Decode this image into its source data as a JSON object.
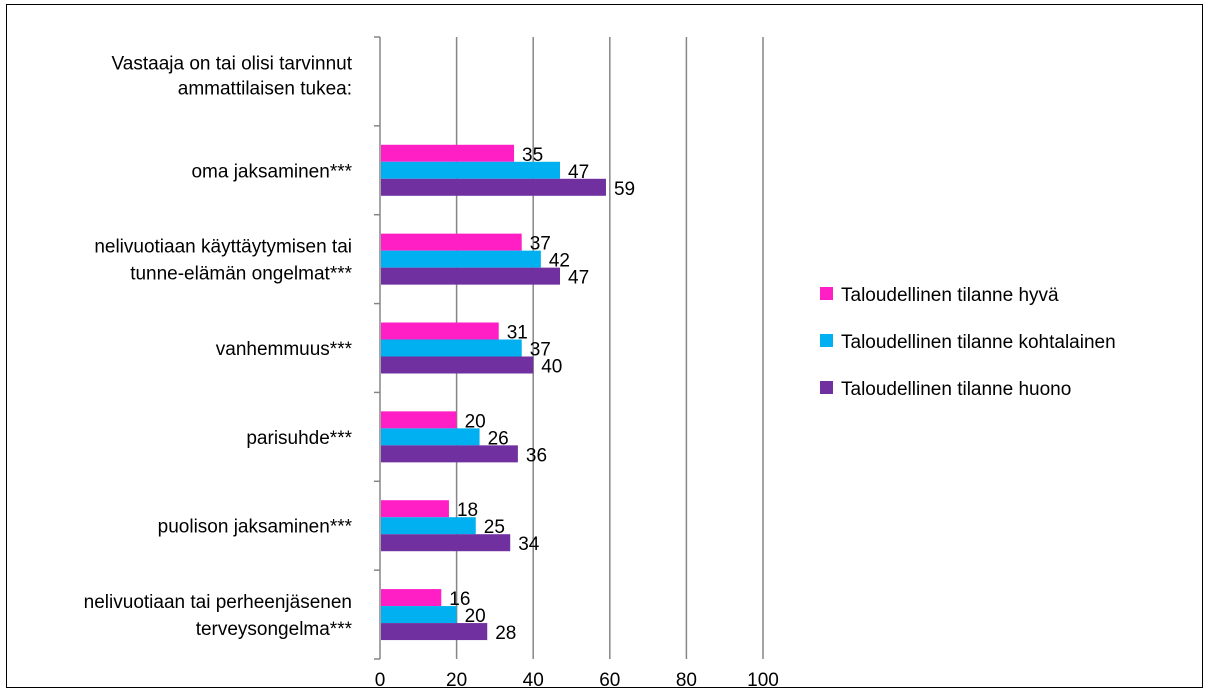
{
  "chart_data": {
    "type": "bar",
    "orientation": "horizontal",
    "title": "",
    "xlabel": "",
    "ylabel": "",
    "xlim": [
      0,
      100
    ],
    "x_ticks": [
      0,
      20,
      40,
      60,
      80,
      100
    ],
    "grid": "vertical",
    "legend_position": "right",
    "header_lines": [
      "Vastaaja on tai olisi tarvinnut",
      "ammattilaisen tukea:"
    ],
    "categories": [
      {
        "lines": [
          "oma jaksaminen***"
        ]
      },
      {
        "lines": [
          "nelivuotiaan käyttäytymisen tai",
          "tunne-elämän ongelmat***"
        ]
      },
      {
        "lines": [
          "vanhemmuus***"
        ]
      },
      {
        "lines": [
          "parisuhde***"
        ]
      },
      {
        "lines": [
          "puolison jaksaminen***"
        ]
      },
      {
        "lines": [
          "nelivuotiaan tai perheenjäsenen",
          "terveysongelma***"
        ]
      }
    ],
    "series": [
      {
        "name": "Taloudellinen tilanne hyvä",
        "color": "#ff1fc5",
        "values": [
          35,
          37,
          31,
          20,
          18,
          16
        ]
      },
      {
        "name": "Taloudellinen tilanne kohtalainen",
        "color": "#00b0f0",
        "values": [
          47,
          42,
          37,
          26,
          25,
          20
        ]
      },
      {
        "name": "Taloudellinen tilanne huono",
        "color": "#7030a0",
        "values": [
          59,
          47,
          40,
          36,
          34,
          28
        ]
      }
    ]
  }
}
